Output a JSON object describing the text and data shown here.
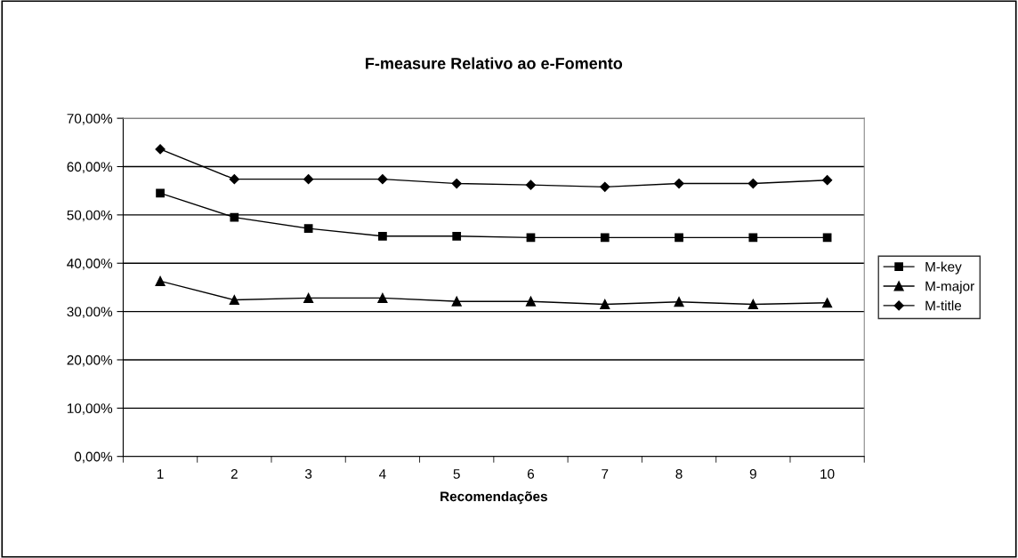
{
  "chart_data": {
    "type": "line",
    "title": "F-measure Relativo ao e-Fomento",
    "xlabel": "Recomendações",
    "categories": [
      "1",
      "2",
      "3",
      "4",
      "5",
      "6",
      "7",
      "8",
      "9",
      "10"
    ],
    "series": [
      {
        "name": "M-key",
        "color": "#000000",
        "marker": "square",
        "values": [
          54.5,
          49.5,
          47.2,
          45.6,
          45.6,
          45.3,
          45.3,
          45.3,
          45.3,
          45.3
        ]
      },
      {
        "name": "M-major",
        "color": "#000000",
        "marker": "triangle",
        "values": [
          36.3,
          32.4,
          32.8,
          32.8,
          32.1,
          32.1,
          31.5,
          32.0,
          31.5,
          31.8
        ]
      },
      {
        "name": "M-title",
        "color": "#000000",
        "marker": "diamond",
        "values": [
          63.6,
          57.4,
          57.4,
          57.4,
          56.5,
          56.2,
          55.8,
          56.5,
          56.5,
          57.2
        ]
      }
    ],
    "ylim": [
      0,
      70
    ],
    "yticks": [
      {
        "value": 0,
        "label": "0,00%"
      },
      {
        "value": 10,
        "label": "10,00%"
      },
      {
        "value": 20,
        "label": "20,00%"
      },
      {
        "value": 30,
        "label": "30,00%"
      },
      {
        "value": 40,
        "label": "40,00%"
      },
      {
        "value": 50,
        "label": "50,00%"
      },
      {
        "value": 60,
        "label": "60,00%"
      },
      {
        "value": 70,
        "label": "70,00%"
      }
    ],
    "grid": "y",
    "legend": "right",
    "line_style": "solid"
  }
}
